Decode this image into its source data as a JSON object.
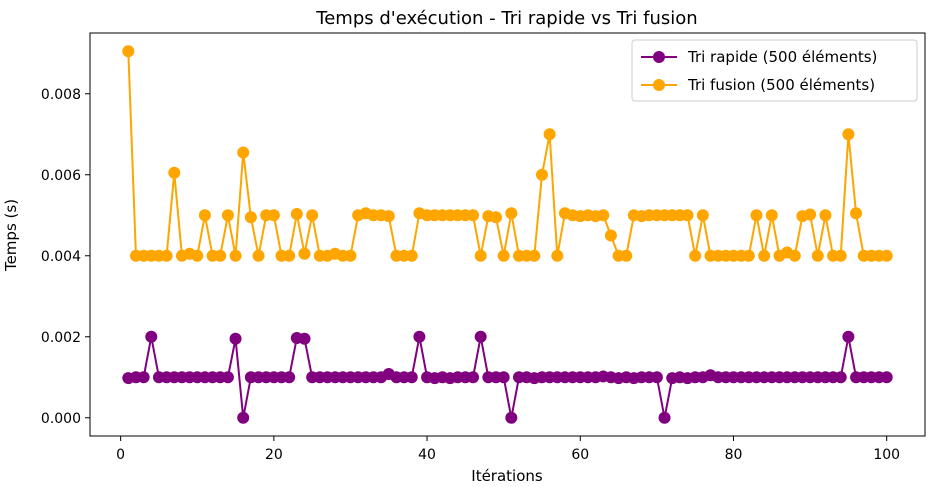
{
  "chart_data": {
    "type": "line",
    "title": "Temps d'exécution - Tri rapide vs Tri fusion",
    "xlabel": "Itérations",
    "ylabel": "Temps (s)",
    "xlim": [
      -4,
      105
    ],
    "ylim": [
      -0.00045,
      0.0095
    ],
    "xticks": [
      0,
      20,
      40,
      60,
      80,
      100
    ],
    "yticks": [
      0.0,
      0.002,
      0.004,
      0.006,
      0.008
    ],
    "xtick_labels": [
      "0",
      "20",
      "40",
      "60",
      "80",
      "100"
    ],
    "ytick_labels": [
      "0.000",
      "0.002",
      "0.004",
      "0.006",
      "0.008"
    ],
    "grid": false,
    "legend_position": "top-right",
    "x": [
      1,
      2,
      3,
      4,
      5,
      6,
      7,
      8,
      9,
      10,
      11,
      12,
      13,
      14,
      15,
      16,
      17,
      18,
      19,
      20,
      21,
      22,
      23,
      24,
      25,
      26,
      27,
      28,
      29,
      30,
      31,
      32,
      33,
      34,
      35,
      36,
      37,
      38,
      39,
      40,
      41,
      42,
      43,
      44,
      45,
      46,
      47,
      48,
      49,
      50,
      51,
      52,
      53,
      54,
      55,
      56,
      57,
      58,
      59,
      60,
      61,
      62,
      63,
      64,
      65,
      66,
      67,
      68,
      69,
      70,
      71,
      72,
      73,
      74,
      75,
      76,
      77,
      78,
      79,
      80,
      81,
      82,
      83,
      84,
      85,
      86,
      87,
      88,
      89,
      90,
      91,
      92,
      93,
      94,
      95,
      96,
      97,
      98,
      99,
      100
    ],
    "series": [
      {
        "name": "Tri rapide (500 éléments)",
        "color": "#800080",
        "values": [
          0.00098,
          0.001,
          0.001,
          0.002,
          0.001,
          0.001,
          0.001,
          0.001,
          0.001,
          0.001,
          0.001,
          0.001,
          0.001,
          0.001,
          0.00195,
          0.0,
          0.001,
          0.001,
          0.001,
          0.001,
          0.001,
          0.001,
          0.00197,
          0.00195,
          0.001,
          0.001,
          0.001,
          0.001,
          0.001,
          0.001,
          0.001,
          0.001,
          0.001,
          0.001,
          0.00108,
          0.001,
          0.001,
          0.001,
          0.002,
          0.001,
          0.00098,
          0.001,
          0.00098,
          0.001,
          0.001,
          0.001,
          0.002,
          0.001,
          0.001,
          0.001,
          0.0,
          0.001,
          0.001,
          0.00098,
          0.001,
          0.001,
          0.001,
          0.001,
          0.001,
          0.001,
          0.001,
          0.001,
          0.00102,
          0.001,
          0.00098,
          0.001,
          0.00098,
          0.001,
          0.001,
          0.001,
          0.0,
          0.00098,
          0.001,
          0.00098,
          0.001,
          0.001,
          0.00105,
          0.001,
          0.001,
          0.001,
          0.001,
          0.001,
          0.001,
          0.001,
          0.001,
          0.001,
          0.001,
          0.001,
          0.001,
          0.001,
          0.001,
          0.001,
          0.001,
          0.001,
          0.002,
          0.001,
          0.001,
          0.001,
          0.001,
          0.001
        ]
      },
      {
        "name": "Tri fusion (500 éléments)",
        "color": "#FFA500",
        "values": [
          0.00905,
          0.004,
          0.004,
          0.004,
          0.004,
          0.004,
          0.00605,
          0.004,
          0.00405,
          0.004,
          0.005,
          0.004,
          0.004,
          0.005,
          0.004,
          0.00655,
          0.00495,
          0.004,
          0.005,
          0.005,
          0.004,
          0.004,
          0.00503,
          0.00405,
          0.005,
          0.004,
          0.004,
          0.00405,
          0.004,
          0.004,
          0.005,
          0.00505,
          0.005,
          0.005,
          0.00498,
          0.004,
          0.004,
          0.004,
          0.00505,
          0.005,
          0.005,
          0.005,
          0.005,
          0.005,
          0.005,
          0.005,
          0.004,
          0.00498,
          0.00495,
          0.004,
          0.00505,
          0.004,
          0.004,
          0.004,
          0.006,
          0.007,
          0.004,
          0.00505,
          0.005,
          0.00498,
          0.005,
          0.00498,
          0.005,
          0.0045,
          0.004,
          0.004,
          0.005,
          0.00498,
          0.005,
          0.005,
          0.005,
          0.005,
          0.005,
          0.005,
          0.004,
          0.005,
          0.004,
          0.004,
          0.004,
          0.004,
          0.004,
          0.004,
          0.005,
          0.004,
          0.005,
          0.004,
          0.00408,
          0.004,
          0.00498,
          0.00502,
          0.004,
          0.005,
          0.004,
          0.004,
          0.007,
          0.00505,
          0.004,
          0.004,
          0.004,
          0.004
        ]
      }
    ]
  }
}
